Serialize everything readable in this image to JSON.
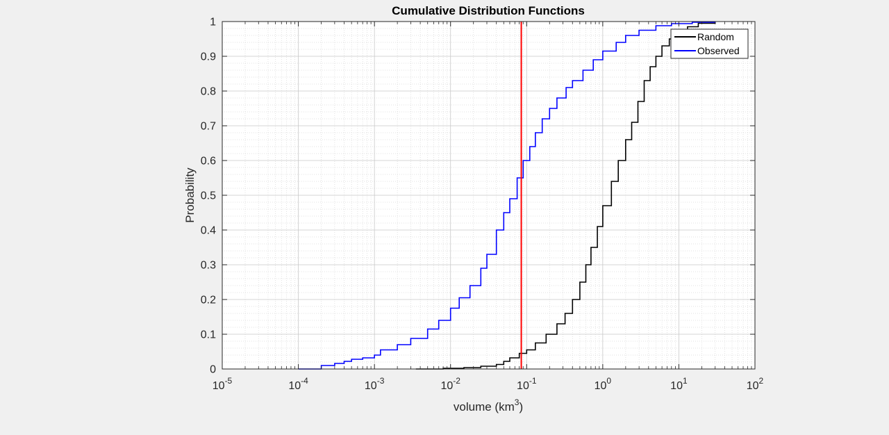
{
  "chart_data": {
    "type": "line",
    "title": "Cumulative Distribution Functions",
    "xlabel": {
      "base": "volume (km",
      "sup": "3",
      "tail": ")"
    },
    "ylabel": "Probability",
    "x_scale": "log",
    "xlim": [
      1e-05,
      100
    ],
    "ylim": [
      0,
      1
    ],
    "x_ticks": [
      {
        "value": 1e-05,
        "base": "10",
        "exp": "-5"
      },
      {
        "value": 0.0001,
        "base": "10",
        "exp": "-4"
      },
      {
        "value": 0.001,
        "base": "10",
        "exp": "-3"
      },
      {
        "value": 0.01,
        "base": "10",
        "exp": "-2"
      },
      {
        "value": 0.1,
        "base": "10",
        "exp": "-1"
      },
      {
        "value": 1,
        "base": "10",
        "exp": "0"
      },
      {
        "value": 10,
        "base": "10",
        "exp": "1"
      },
      {
        "value": 100,
        "base": "10",
        "exp": "2"
      }
    ],
    "y_ticks": [
      {
        "value": 0,
        "label": "0"
      },
      {
        "value": 0.1,
        "label": "0.1"
      },
      {
        "value": 0.2,
        "label": "0.2"
      },
      {
        "value": 0.3,
        "label": "0.3"
      },
      {
        "value": 0.4,
        "label": "0.4"
      },
      {
        "value": 0.5,
        "label": "0.5"
      },
      {
        "value": 0.6,
        "label": "0.6"
      },
      {
        "value": 0.7,
        "label": "0.7"
      },
      {
        "value": 0.8,
        "label": "0.8"
      },
      {
        "value": 0.9,
        "label": "0.9"
      },
      {
        "value": 1,
        "label": "1"
      }
    ],
    "grid": true,
    "minor_grid": true,
    "legend_position": "top-right",
    "series": [
      {
        "name": "Random",
        "color": "#000000",
        "points": [
          [
            0.0035,
            0
          ],
          [
            0.008,
            0.002
          ],
          [
            0.015,
            0.004
          ],
          [
            0.025,
            0.008
          ],
          [
            0.04,
            0.013
          ],
          [
            0.05,
            0.022
          ],
          [
            0.06,
            0.032
          ],
          [
            0.08,
            0.045
          ],
          [
            0.1,
            0.055
          ],
          [
            0.13,
            0.075
          ],
          [
            0.18,
            0.1
          ],
          [
            0.25,
            0.13
          ],
          [
            0.32,
            0.16
          ],
          [
            0.4,
            0.2
          ],
          [
            0.5,
            0.25
          ],
          [
            0.6,
            0.3
          ],
          [
            0.7,
            0.35
          ],
          [
            0.85,
            0.41
          ],
          [
            1.0,
            0.47
          ],
          [
            1.3,
            0.54
          ],
          [
            1.6,
            0.6
          ],
          [
            2.0,
            0.66
          ],
          [
            2.4,
            0.71
          ],
          [
            2.9,
            0.77
          ],
          [
            3.5,
            0.83
          ],
          [
            4.2,
            0.87
          ],
          [
            5.0,
            0.9
          ],
          [
            6.0,
            0.93
          ],
          [
            7.5,
            0.95
          ],
          [
            10,
            0.97
          ],
          [
            13,
            0.985
          ],
          [
            18,
            0.995
          ],
          [
            30,
            1.0
          ]
        ]
      },
      {
        "name": "Observed",
        "color": "#0000ff",
        "points": [
          [
            0.0001,
            0
          ],
          [
            0.0002,
            0.01
          ],
          [
            0.0003,
            0.016
          ],
          [
            0.0004,
            0.022
          ],
          [
            0.0005,
            0.028
          ],
          [
            0.0007,
            0.032
          ],
          [
            0.001,
            0.04
          ],
          [
            0.0012,
            0.055
          ],
          [
            0.002,
            0.07
          ],
          [
            0.003,
            0.088
          ],
          [
            0.005,
            0.115
          ],
          [
            0.007,
            0.14
          ],
          [
            0.01,
            0.175
          ],
          [
            0.013,
            0.205
          ],
          [
            0.018,
            0.24
          ],
          [
            0.025,
            0.29
          ],
          [
            0.03,
            0.33
          ],
          [
            0.04,
            0.4
          ],
          [
            0.05,
            0.45
          ],
          [
            0.06,
            0.49
          ],
          [
            0.075,
            0.55
          ],
          [
            0.09,
            0.6
          ],
          [
            0.11,
            0.64
          ],
          [
            0.13,
            0.68
          ],
          [
            0.16,
            0.72
          ],
          [
            0.2,
            0.75
          ],
          [
            0.25,
            0.78
          ],
          [
            0.33,
            0.81
          ],
          [
            0.4,
            0.83
          ],
          [
            0.55,
            0.86
          ],
          [
            0.75,
            0.89
          ],
          [
            1.0,
            0.915
          ],
          [
            1.5,
            0.94
          ],
          [
            2.0,
            0.96
          ],
          [
            3.0,
            0.975
          ],
          [
            5.0,
            0.988
          ],
          [
            8.0,
            0.994
          ],
          [
            15,
            0.998
          ],
          [
            30,
            1.0
          ]
        ]
      }
    ],
    "reference_line": {
      "x": 0.085,
      "color": "#ff0000"
    }
  }
}
